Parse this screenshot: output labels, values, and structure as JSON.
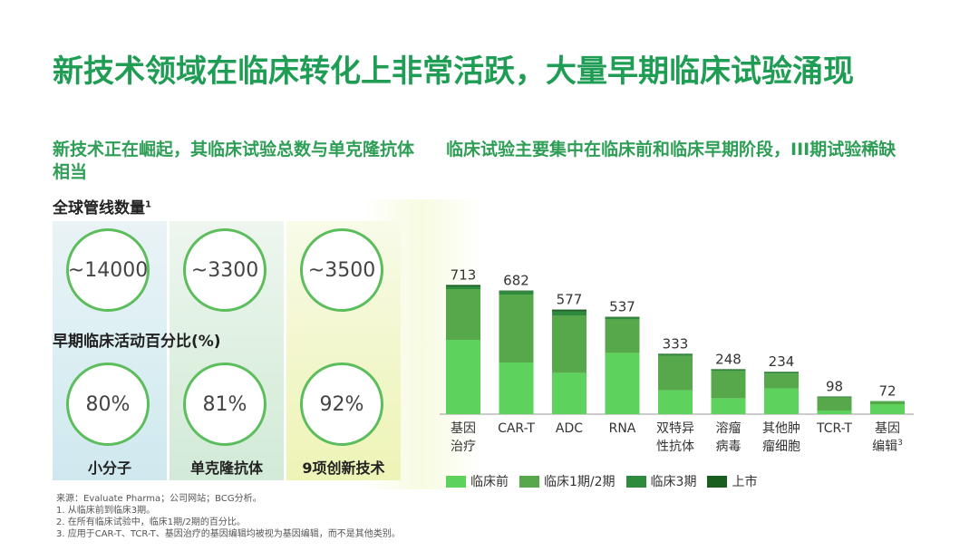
{
  "title": "新技术领域在临床转化上非常活跃，大量早期临床试验涌现",
  "left_subtitle": "新技术正在崛起，其临床试验总数与单克隆抗体相当",
  "right_subtitle": "临床试验主要集中在临床前和临床早期阶段，III期试验稀缺",
  "pipeline_label": "全球管线数量",
  "pipeline_sup": "1",
  "early_label": "早期临床活动百分比(%)",
  "categories": [
    {
      "name": "小分子",
      "pipeline": "~14000",
      "early_pct": "80%"
    },
    {
      "name": "单克隆抗体",
      "pipeline": "~3300",
      "early_pct": "81%"
    },
    {
      "name": "9项创新技术",
      "pipeline": "~3500",
      "early_pct": "92%"
    }
  ],
  "chart_data": {
    "type": "bar",
    "stacked": true,
    "categories": [
      "基因治疗",
      "CAR-T",
      "ADC",
      "RNA",
      "双特异性抗体",
      "溶瘤病毒",
      "其他肿瘤细胞",
      "TCR-T",
      "基因编辑"
    ],
    "category_lines": [
      [
        "基因",
        "治疗"
      ],
      [
        "CAR-T"
      ],
      [
        "ADC"
      ],
      [
        "RNA"
      ],
      [
        "双特异",
        "性抗体"
      ],
      [
        "溶瘤",
        "病毒"
      ],
      [
        "其他肿",
        "瘤细胞"
      ],
      [
        "TCR-T"
      ],
      [
        "基因",
        "编辑"
      ]
    ],
    "category_sup": [
      "",
      "",
      "",
      "",
      "",
      "",
      "",
      "",
      "3"
    ],
    "totals": [
      713,
      682,
      577,
      537,
      333,
      248,
      234,
      98,
      72
    ],
    "series": [
      {
        "name": "临床前",
        "color": "#5dd35d",
        "values": [
          410,
          285,
          228,
          338,
          132,
          88,
          142,
          20,
          55
        ]
      },
      {
        "name": "临床1期/2期",
        "color": "#56a84a",
        "values": [
          280,
          375,
          315,
          185,
          190,
          150,
          82,
          72,
          15
        ]
      },
      {
        "name": "临床3期",
        "color": "#2e8b3e",
        "values": [
          15,
          18,
          24,
          10,
          8,
          7,
          8,
          4,
          2
        ]
      },
      {
        "name": "上市",
        "color": "#1a5e1f",
        "values": [
          8,
          4,
          10,
          4,
          3,
          3,
          2,
          2,
          0
        ]
      }
    ]
  },
  "footnotes": [
    "来源：Evaluate Pharma；公司网站；BCG分析。",
    "1. 从临床前到临床3期。",
    "2. 在所有临床试验中，临床1期/2期的百分比。",
    "3. 应用于CAR-T、TCR-T、基因治疗的基因编辑均被视为基因编辑，而不是其他类别。"
  ]
}
